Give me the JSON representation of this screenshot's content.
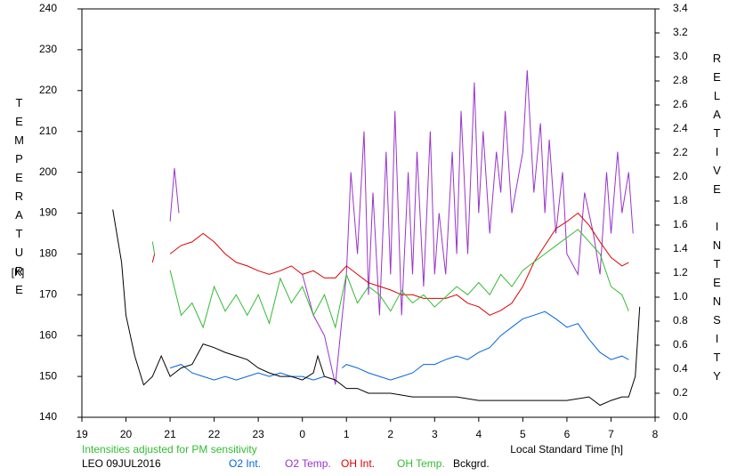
{
  "chart_data": {
    "type": "line",
    "y_label": "TEMPERATURE",
    "y_unit": "[K]",
    "y2_label": "RELATIVE INTENSITY",
    "x_label": "Local Standard Time [h]",
    "note": "Intensities adjusted for PM sensitivity",
    "station": "LEO 09JUL2016",
    "xlim": [
      19,
      32
    ],
    "xticks": [
      19,
      20,
      21,
      22,
      23,
      {
        "value": 24,
        "label": "0"
      },
      {
        "value": 25,
        "label": "1"
      },
      {
        "value": 26,
        "label": "2"
      },
      {
        "value": 27,
        "label": "3"
      },
      {
        "value": 28,
        "label": "4"
      },
      {
        "value": 29,
        "label": "5"
      },
      {
        "value": 30,
        "label": "6"
      },
      {
        "value": 31,
        "label": "7"
      },
      {
        "value": 32,
        "label": "8"
      }
    ],
    "ylim": [
      140,
      240
    ],
    "yticks": [
      140,
      150,
      160,
      170,
      180,
      190,
      200,
      210,
      220,
      230,
      240
    ],
    "y2lim": [
      0,
      3.4
    ],
    "y2ticks": [
      {
        "value": 0,
        "label": "0.0"
      },
      0.2,
      0.4,
      0.6,
      0.8,
      {
        "value": 1,
        "label": "1.0"
      },
      1.2,
      1.4,
      1.6,
      1.8,
      {
        "value": 2,
        "label": "2.0"
      },
      2.2,
      2.4,
      2.6,
      2.8,
      {
        "value": 3,
        "label": "3.0"
      },
      3.2,
      3.4
    ],
    "series": [
      {
        "name": "O2 Int.",
        "color": "#0066dd",
        "axis": "y2",
        "x": [
          21.0,
          21.25,
          21.5,
          21.75,
          22.0,
          22.25,
          22.5,
          22.75,
          23.0,
          23.25,
          23.5,
          23.75,
          24.0,
          24.25,
          24.5,
          24.75,
          24.9,
          25.0,
          25.25,
          25.5,
          25.75,
          26.0,
          26.25,
          26.5,
          26.75,
          27.0,
          27.25,
          27.5,
          27.75,
          28.0,
          28.25,
          28.5,
          28.75,
          29.0,
          29.25,
          29.5,
          29.75,
          30.0,
          30.25,
          30.5,
          30.75,
          31.0,
          31.25,
          31.4
        ],
        "values": [
          0.41,
          0.44,
          0.37,
          0.34,
          0.31,
          0.34,
          0.31,
          0.34,
          0.37,
          0.34,
          0.37,
          0.34,
          0.34,
          0.31,
          0.34,
          null,
          0.41,
          0.44,
          0.41,
          0.37,
          0.34,
          0.31,
          0.34,
          0.37,
          0.44,
          0.44,
          0.48,
          0.51,
          0.48,
          0.54,
          0.58,
          0.68,
          0.75,
          0.82,
          0.85,
          0.88,
          0.82,
          0.75,
          0.78,
          0.65,
          0.54,
          0.48,
          0.51,
          0.48
        ]
      },
      {
        "name": "O2 Temp.",
        "color": "#9933cc",
        "axis": "y",
        "x": [
          21.0,
          21.1,
          21.2,
          23.9,
          24.0,
          24.25,
          24.5,
          24.75,
          25.0,
          25.1,
          25.25,
          25.4,
          25.5,
          25.6,
          25.75,
          25.9,
          26.0,
          26.1,
          26.25,
          26.4,
          26.5,
          26.6,
          26.75,
          26.9,
          27.0,
          27.1,
          27.25,
          27.4,
          27.5,
          27.6,
          27.75,
          27.9,
          28.0,
          28.1,
          28.25,
          28.4,
          28.5,
          28.6,
          28.75,
          29.0,
          29.1,
          29.25,
          29.4,
          29.5,
          29.6,
          29.75,
          29.9,
          30.0,
          30.25,
          30.4,
          30.6,
          30.75,
          30.9,
          31.0,
          31.15,
          31.25,
          31.4,
          31.5
        ],
        "values": [
          188,
          201,
          190,
          null,
          175,
          165,
          160,
          148,
          175,
          200,
          180,
          210,
          170,
          195,
          165,
          205,
          175,
          215,
          165,
          200,
          175,
          205,
          172,
          210,
          175,
          190,
          175,
          205,
          180,
          215,
          180,
          222,
          190,
          210,
          185,
          205,
          195,
          215,
          190,
          205,
          225,
          195,
          212,
          190,
          208,
          185,
          200,
          180,
          175,
          195,
          185,
          175,
          200,
          185,
          205,
          190,
          200,
          185
        ]
      },
      {
        "name": "OH Int.",
        "color": "#dd0000",
        "axis": "y2",
        "x": [
          20.6,
          20.65,
          20.8,
          21.0,
          21.25,
          21.5,
          21.75,
          22.0,
          22.25,
          22.5,
          22.75,
          23.0,
          23.25,
          23.5,
          23.75,
          24.0,
          24.25,
          24.5,
          24.75,
          25.0,
          25.25,
          25.5,
          25.75,
          26.0,
          26.25,
          26.5,
          26.75,
          27.0,
          27.25,
          27.5,
          27.75,
          28.0,
          28.25,
          28.5,
          28.75,
          29.0,
          29.25,
          29.5,
          29.75,
          30.0,
          30.25,
          30.5,
          30.75,
          31.0,
          31.25,
          31.4
        ],
        "values": [
          1.29,
          1.36,
          null,
          1.36,
          1.43,
          1.46,
          1.53,
          1.46,
          1.36,
          1.29,
          1.26,
          1.22,
          1.19,
          1.22,
          1.26,
          1.19,
          1.22,
          1.16,
          1.16,
          1.26,
          1.19,
          1.12,
          1.09,
          1.06,
          1.02,
          1.02,
          0.99,
          0.99,
          0.99,
          1.02,
          0.95,
          0.92,
          0.85,
          0.89,
          0.95,
          1.09,
          1.29,
          1.43,
          1.57,
          1.63,
          1.7,
          1.6,
          1.46,
          1.33,
          1.26,
          1.29
        ]
      },
      {
        "name": "OH Temp.",
        "color": "#33bb33",
        "axis": "y",
        "x": [
          20.6,
          20.65,
          20.8,
          21.0,
          21.25,
          21.5,
          21.75,
          22.0,
          22.25,
          22.5,
          22.75,
          23.0,
          23.25,
          23.5,
          23.75,
          24.0,
          24.25,
          24.5,
          24.75,
          25.0,
          25.25,
          25.5,
          25.75,
          26.0,
          26.25,
          26.5,
          26.75,
          27.0,
          27.5,
          27.75,
          28.0,
          28.25,
          28.5,
          28.75,
          29.0,
          29.25,
          29.5,
          29.75,
          30.0,
          30.25,
          30.5,
          30.75,
          31.0,
          31.25,
          31.4
        ],
        "values": [
          183,
          180,
          null,
          176,
          165,
          168,
          162,
          172,
          166,
          170,
          165,
          170,
          163,
          174,
          168,
          172,
          165,
          170,
          162,
          175,
          168,
          172,
          170,
          166,
          171,
          168,
          170,
          167,
          172,
          170,
          173,
          170,
          175,
          172,
          176,
          178,
          180,
          182,
          184,
          186,
          183,
          180,
          172,
          170,
          166
        ]
      },
      {
        "name": "Bckgrd.",
        "color": "#000000",
        "axis": "y2",
        "x": [
          19.7,
          19.9,
          20.0,
          20.2,
          20.4,
          20.6,
          20.8,
          21.0,
          21.25,
          21.5,
          21.75,
          22.0,
          22.25,
          22.5,
          22.75,
          23.0,
          23.25,
          23.5,
          23.75,
          24.0,
          24.25,
          24.35,
          24.5,
          24.75,
          25.0,
          25.25,
          25.5,
          26.0,
          26.5,
          27.0,
          27.5,
          28.0,
          28.5,
          29.0,
          29.5,
          30.0,
          30.5,
          30.75,
          31.0,
          31.25,
          31.4,
          31.55,
          31.65
        ],
        "values": [
          1.73,
          1.29,
          0.85,
          0.51,
          0.27,
          0.34,
          0.51,
          0.34,
          0.41,
          0.44,
          0.61,
          0.58,
          0.54,
          0.51,
          0.48,
          0.41,
          0.37,
          0.34,
          0.34,
          0.31,
          0.37,
          0.51,
          0.34,
          0.31,
          0.24,
          0.24,
          0.2,
          0.2,
          0.17,
          0.17,
          0.17,
          0.14,
          0.14,
          0.14,
          0.14,
          0.14,
          0.17,
          0.1,
          0.14,
          0.17,
          0.17,
          0.34,
          0.92
        ]
      }
    ]
  }
}
